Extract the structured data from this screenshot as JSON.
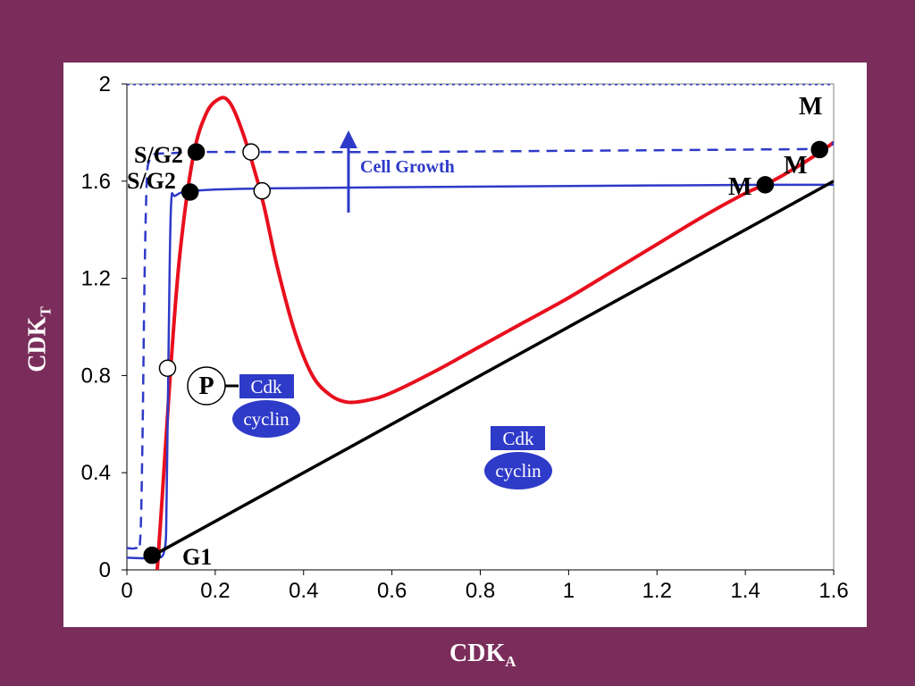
{
  "colors": {
    "background": "#7a2d5a",
    "plot_area": "#ffffff",
    "red_curve": "#e8101e",
    "blue_curve": "#2e3ac8",
    "diagonal": "#000000",
    "label_blue": "#2e3ac8"
  },
  "chart_data": {
    "type": "line",
    "title": "",
    "xlabel": "CDK",
    "xlabel_sub": "A",
    "ylabel": "CDK",
    "ylabel_sub": "T",
    "xlim": [
      0,
      1.6
    ],
    "ylim": [
      0,
      2.0
    ],
    "xticks": [
      "0",
      "0.2",
      "0.4",
      "0.6",
      "0.8",
      "1",
      "1.2",
      "1.4",
      "1.6"
    ],
    "yticks": [
      "0",
      "0.4",
      "0.8",
      "1.2",
      "1.6",
      "2"
    ],
    "grid": false,
    "series": [
      {
        "style": "red solid",
        "x": [
          0.065,
          0.08,
          0.1,
          0.12,
          0.15,
          0.18,
          0.21,
          0.23,
          0.25,
          0.28,
          0.31,
          0.34,
          0.38,
          0.42,
          0.46,
          0.5,
          0.55,
          0.6,
          0.7,
          0.8,
          0.9,
          1.0,
          1.1,
          1.2,
          1.3,
          1.4,
          1.45,
          1.5,
          1.57,
          1.6
        ],
        "y": [
          -0.1,
          0.3,
          0.85,
          1.3,
          1.7,
          1.88,
          1.94,
          1.93,
          1.86,
          1.7,
          1.5,
          1.25,
          0.98,
          0.8,
          0.72,
          0.69,
          0.7,
          0.73,
          0.82,
          0.92,
          1.02,
          1.12,
          1.23,
          1.34,
          1.45,
          1.55,
          1.59,
          1.64,
          1.72,
          1.76
        ]
      },
      {
        "style": "blue solid",
        "x": [
          0,
          0.06,
          0.085,
          0.09,
          0.095,
          0.1,
          0.11,
          0.15,
          0.3,
          0.6,
          1.0,
          1.45,
          1.6
        ],
        "y": [
          0.05,
          0.05,
          0.08,
          0.3,
          1.0,
          1.5,
          1.54,
          1.56,
          1.57,
          1.575,
          1.58,
          1.585,
          1.585
        ]
      },
      {
        "style": "blue dashed",
        "x": [
          0,
          0.02,
          0.03,
          0.035,
          0.04,
          0.045,
          0.05,
          0.06,
          0.1,
          0.16,
          0.3,
          0.6,
          1.0,
          1.4,
          1.57,
          1.6
        ],
        "y": [
          0.09,
          0.09,
          0.12,
          0.5,
          1.2,
          1.6,
          1.68,
          1.71,
          1.715,
          1.72,
          1.72,
          1.72,
          1.725,
          1.73,
          1.735,
          1.76
        ]
      },
      {
        "style": "black diagonal",
        "x": [
          0.06,
          1.6
        ],
        "y": [
          0.06,
          1.6
        ]
      },
      {
        "style": "blue dotted horizontal",
        "x": [
          0,
          1.6
        ],
        "y": [
          2.0,
          2.0
        ]
      }
    ],
    "points": [
      {
        "x": 0.057,
        "y": 0.06,
        "filled": true
      },
      {
        "x": 0.143,
        "y": 1.555,
        "filled": true
      },
      {
        "x": 0.157,
        "y": 1.72,
        "filled": true
      },
      {
        "x": 0.281,
        "y": 1.72,
        "filled": false
      },
      {
        "x": 0.306,
        "y": 1.56,
        "filled": false
      },
      {
        "x": 0.092,
        "y": 0.83,
        "filled": false
      },
      {
        "x": 1.445,
        "y": 1.585,
        "filled": true
      },
      {
        "x": 1.568,
        "y": 1.73,
        "filled": true
      }
    ],
    "annotations": {
      "g1": "G1",
      "sg2_upper": "S/G2",
      "sg2_lower": "S/G2",
      "m_top": "M",
      "m_right": "M",
      "m_mid": "M",
      "cell_growth": "Cell Growth",
      "p_badge": "P",
      "cdk_left": "Cdk",
      "cyclin_left": "cyclin",
      "cdk_right": "Cdk",
      "cyclin_right": "cyclin"
    }
  }
}
